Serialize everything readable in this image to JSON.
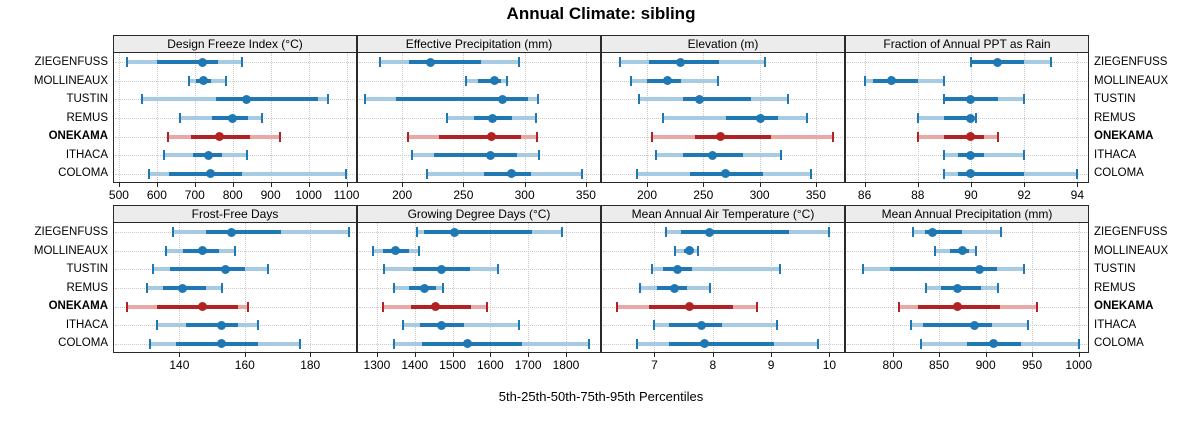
{
  "title": "Annual Climate: sibling",
  "caption": "5th-25th-50th-75th-95th Percentiles",
  "colors": {
    "blue_dark": "#1f77b4",
    "blue_light": "#a6cbe2",
    "red_dark": "#b22222",
    "red_light": "#e8a9a6",
    "grid": "#c9c9c9",
    "header_bg": "#ececec",
    "border": "#2a2a2a"
  },
  "chart_data": {
    "type": "dotplot",
    "subtype": "percentile-whisker",
    "percentiles": [
      5,
      25,
      50,
      75,
      95
    ],
    "legend_note": "5th-25th-50th-75th-95th Percentiles",
    "categories": [
      "ZIEGENFUSS",
      "MOLLINEAUX",
      "TUSTIN",
      "REMUS",
      "ONEKAMA",
      "ITHACA",
      "COLOMA"
    ],
    "highlighted_category": "ONEKAMA",
    "layout": {
      "rows": 2,
      "cols": 4,
      "grid": "dotted",
      "row_labels": "both-sides"
    },
    "panels": [
      {
        "title": "Design Freeze Index (°C)",
        "xlim": [
          487,
          1125
        ],
        "ticks": [
          500,
          600,
          700,
          800,
          900,
          1000,
          1100
        ],
        "values": [
          [
            520,
            600,
            720,
            762,
            825
          ],
          [
            685,
            702,
            722,
            742,
            782
          ],
          [
            560,
            755,
            835,
            1025,
            1052
          ],
          [
            660,
            745,
            800,
            840,
            878
          ],
          [
            630,
            690,
            765,
            845,
            925
          ],
          [
            620,
            695,
            735,
            772,
            838
          ],
          [
            580,
            632,
            742,
            825,
            1098
          ]
        ]
      },
      {
        "title": "Effective Precipitation (mm)",
        "xlim": [
          164,
          361.5
        ],
        "ticks": [
          200,
          250,
          300,
          350
        ],
        "values": [
          [
            182,
            206,
            223,
            264,
            295
          ],
          [
            252,
            262,
            275,
            281,
            286
          ],
          [
            170,
            195,
            282,
            303,
            311
          ],
          [
            237,
            259,
            274,
            290,
            309
          ],
          [
            205,
            230,
            273,
            297,
            310
          ],
          [
            208,
            226,
            272,
            294,
            312
          ],
          [
            220,
            267,
            289,
            305,
            347
          ]
        ]
      },
      {
        "title": "Elevation (m)",
        "xlim": [
          160,
          375
        ],
        "ticks": [
          200,
          250,
          300,
          350
        ],
        "values": [
          [
            176,
            202,
            230,
            264,
            305
          ],
          [
            186,
            200,
            218,
            230,
            263
          ],
          [
            193,
            232,
            247,
            292,
            325
          ],
          [
            214,
            270,
            301,
            316,
            342
          ],
          [
            204,
            243,
            265,
            310,
            365
          ],
          [
            208,
            232,
            258,
            285,
            319
          ],
          [
            191,
            238,
            270,
            303,
            346
          ]
        ]
      },
      {
        "title": "Fraction of Annual PPT as Rain",
        "xlim": [
          85.3,
          94.4
        ],
        "ticks": [
          86,
          88,
          90,
          92,
          94
        ],
        "values": [
          [
            90,
            90,
            91,
            92,
            93
          ],
          [
            86,
            86.3,
            87,
            88,
            89
          ],
          [
            89,
            89,
            90,
            91,
            92
          ],
          [
            88,
            89,
            90,
            90,
            90.2
          ],
          [
            88,
            89,
            90,
            90.5,
            91
          ],
          [
            89,
            89.5,
            90,
            90.5,
            92
          ],
          [
            89,
            89.5,
            90,
            92,
            94
          ]
        ]
      },
      {
        "title": "Frost-Free Days",
        "xlim": [
          120,
          194
        ],
        "ticks": [
          140,
          160,
          180
        ],
        "values": [
          [
            138,
            148,
            156,
            171,
            192
          ],
          [
            136,
            141,
            147,
            152,
            157
          ],
          [
            132,
            137,
            154,
            160,
            167
          ],
          [
            130,
            135,
            141,
            148,
            153
          ],
          [
            124,
            133,
            147,
            158,
            161
          ],
          [
            133,
            142,
            153,
            158,
            164
          ],
          [
            131,
            139,
            153,
            164,
            177
          ]
        ]
      },
      {
        "title": "Growing Degree Days (°C)",
        "xlim": [
          1250,
          1890
        ],
        "ticks": [
          1300,
          1400,
          1500,
          1600,
          1700,
          1800
        ],
        "values": [
          [
            1405,
            1425,
            1505,
            1710,
            1790
          ],
          [
            1290,
            1315,
            1350,
            1385,
            1410
          ],
          [
            1320,
            1395,
            1470,
            1545,
            1620
          ],
          [
            1345,
            1385,
            1425,
            1455,
            1475
          ],
          [
            1315,
            1390,
            1455,
            1550,
            1590
          ],
          [
            1370,
            1415,
            1470,
            1530,
            1675
          ],
          [
            1345,
            1420,
            1540,
            1685,
            1860
          ]
        ]
      },
      {
        "title": "Mean Annual Air Temperature (°C)",
        "xlim": [
          6.1,
          10.25
        ],
        "ticks": [
          7,
          8,
          9,
          10
        ],
        "values": [
          [
            7.2,
            7.45,
            7.95,
            9.3,
            10.0
          ],
          [
            7.35,
            7.5,
            7.6,
            7.65,
            7.75
          ],
          [
            6.95,
            7.15,
            7.4,
            7.65,
            9.15
          ],
          [
            6.75,
            7.05,
            7.35,
            7.55,
            7.95
          ],
          [
            6.35,
            6.9,
            7.6,
            8.35,
            8.75
          ],
          [
            7.0,
            7.25,
            7.8,
            8.15,
            9.1
          ],
          [
            6.7,
            7.25,
            7.85,
            9.05,
            9.8
          ]
        ]
      },
      {
        "title": "Mean Annual Precipitation (mm)",
        "xlim": [
          750,
          1010
        ],
        "ticks": [
          800,
          850,
          900,
          950,
          1000
        ],
        "values": [
          [
            822,
            835,
            843,
            875,
            917
          ],
          [
            846,
            862,
            875,
            882,
            890
          ],
          [
            768,
            797,
            893,
            912,
            941
          ],
          [
            836,
            852,
            870,
            895,
            913
          ],
          [
            807,
            827,
            870,
            915,
            955
          ],
          [
            820,
            833,
            888,
            907,
            946
          ],
          [
            831,
            880,
            908,
            938,
            1000
          ]
        ]
      }
    ]
  }
}
